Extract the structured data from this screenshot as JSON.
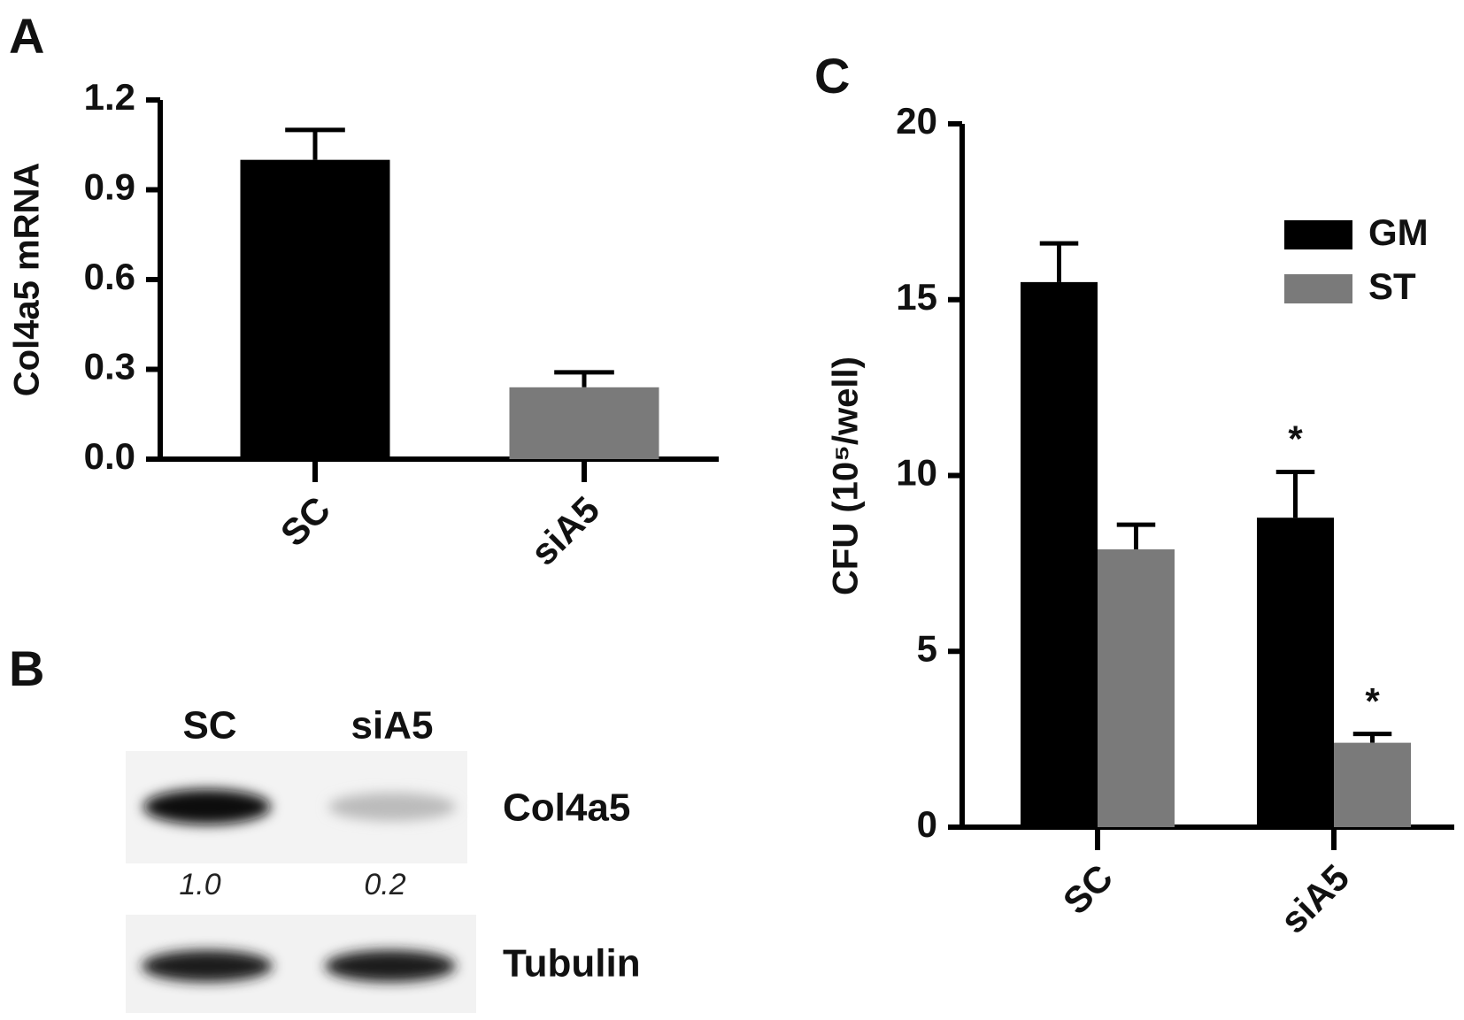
{
  "chart_data": [
    {
      "type": "bar",
      "panel": "A",
      "ylabel": "Col4a5 mRNA",
      "categories": [
        "SC",
        "siA5"
      ],
      "series": [
        {
          "colors": [
            "#000000",
            "#7a7a7a"
          ],
          "values": [
            1.0,
            0.24
          ],
          "errors": [
            0.1,
            0.05
          ]
        }
      ],
      "ylim": [
        0,
        1.2
      ],
      "yticks": [
        {
          "value": 0,
          "label": "0.0"
        },
        0.3,
        0.6,
        0.9,
        1.2
      ]
    },
    {
      "type": "grouped_bar",
      "panel": "C",
      "ylabel": "CFU (10⁵/well)",
      "categories": [
        "SC",
        "siA5"
      ],
      "series": [
        {
          "name": "GM",
          "color": "#000000",
          "values": [
            15.5,
            8.8
          ],
          "errors": [
            1.1,
            1.3
          ],
          "significance": [
            null,
            "*"
          ]
        },
        {
          "name": "ST",
          "color": "#7a7a7a",
          "values": [
            7.9,
            2.4
          ],
          "errors": [
            0.7,
            0.25
          ],
          "significance": [
            null,
            "*"
          ]
        }
      ],
      "ylim": [
        0,
        20
      ],
      "yticks": [
        0,
        5,
        10,
        15,
        20
      ],
      "legend": "upper right"
    }
  ],
  "blot": {
    "panel": "B",
    "lanes": [
      "SC",
      "siA5"
    ],
    "rows": [
      {
        "label": "Col4a5",
        "quantification": [
          "1.0",
          "0.2"
        ]
      },
      {
        "label": "Tubulin"
      }
    ]
  }
}
